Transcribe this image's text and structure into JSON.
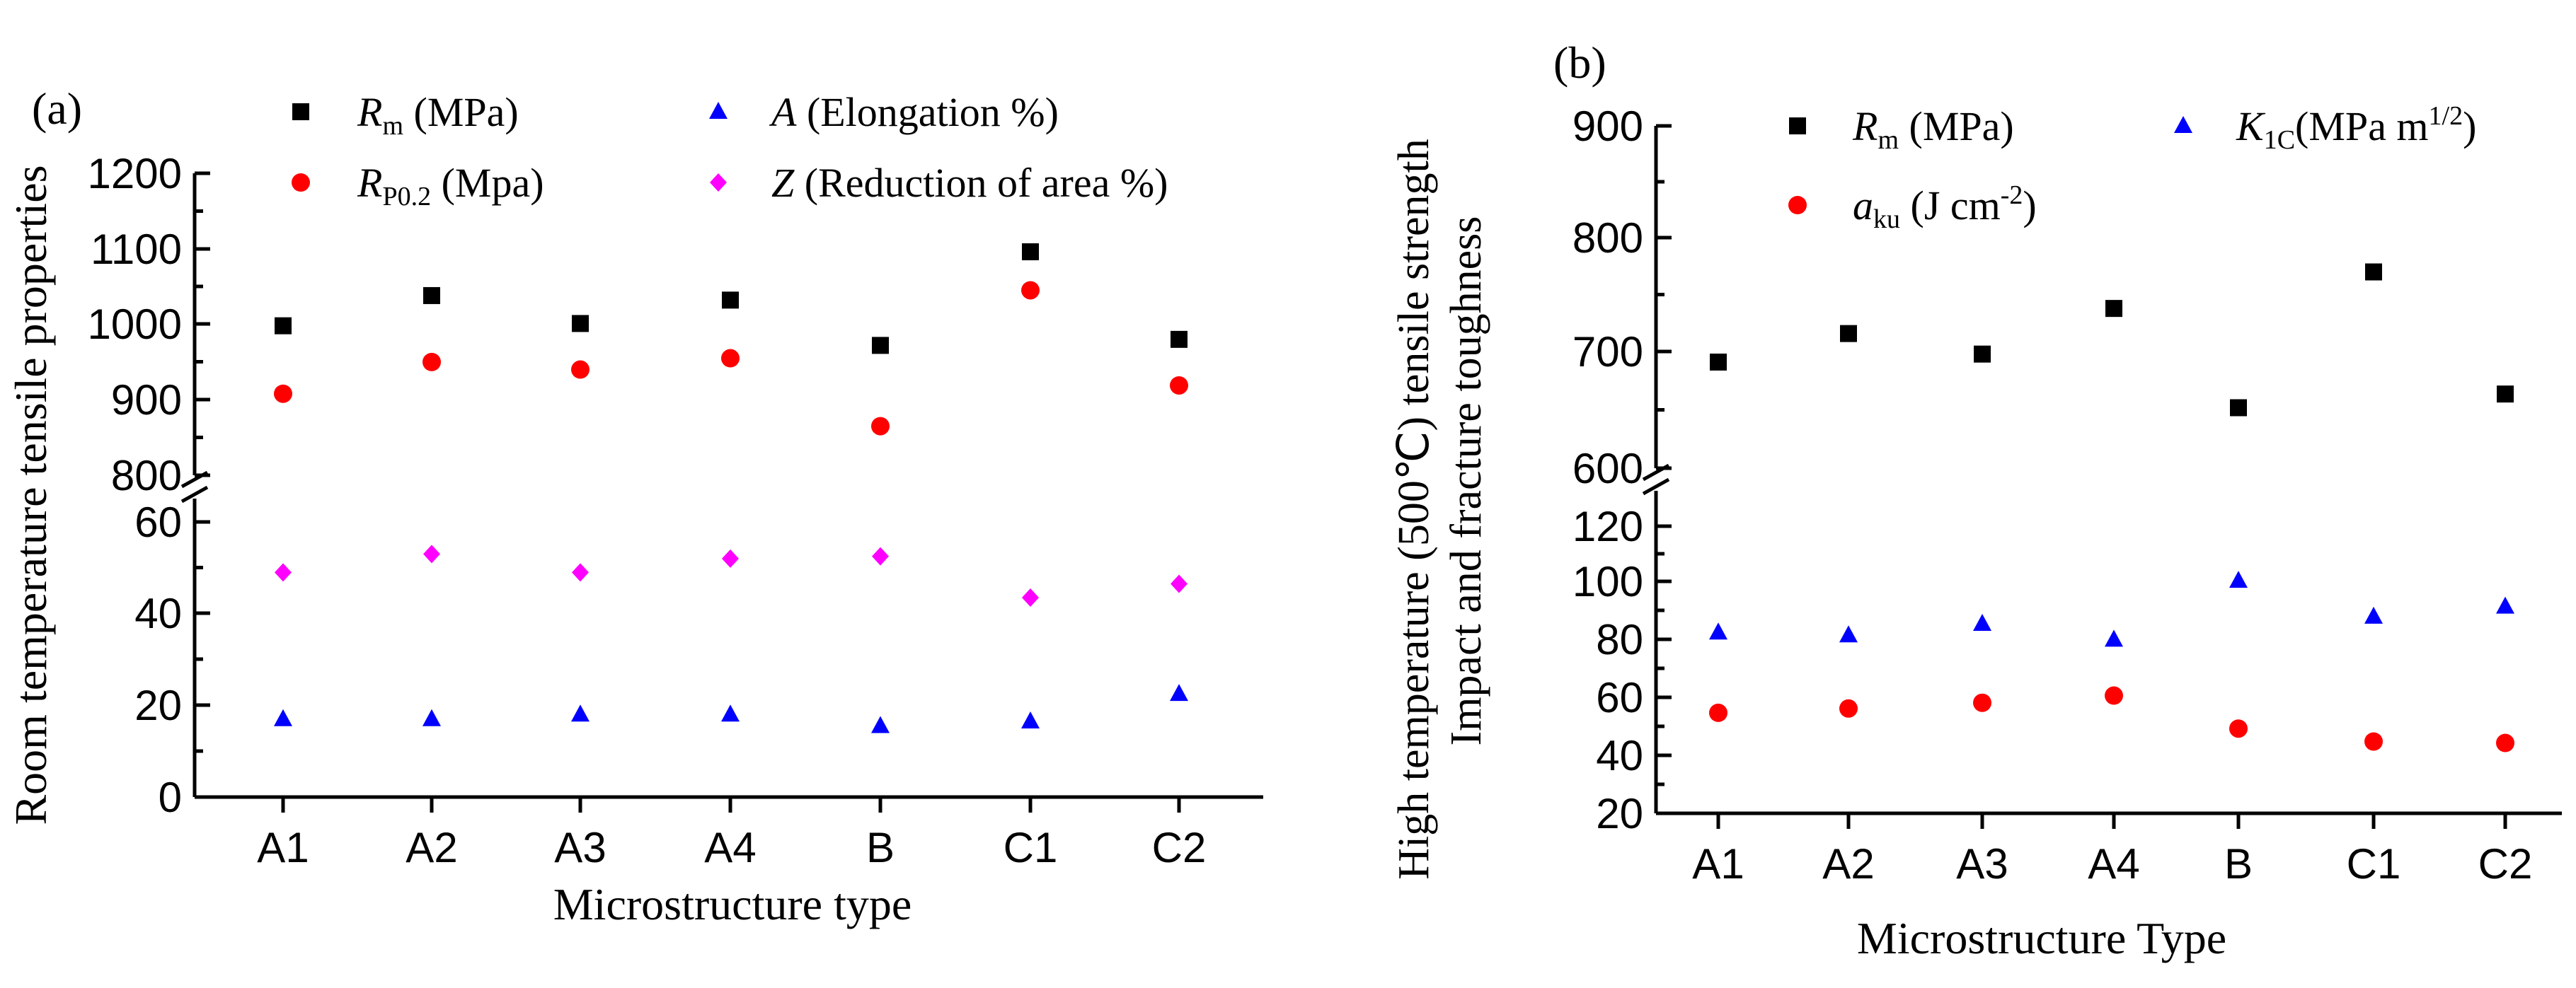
{
  "chart_data": [
    {
      "type": "scatter",
      "panel_label": "(a)",
      "title": "",
      "xlabel": "Microstructure type",
      "ylabel": "Room temperature tensile properties",
      "categories": [
        "A1",
        "A2",
        "A3",
        "A4",
        "B",
        "C1",
        "C2"
      ],
      "broken_axis": true,
      "upper_ylim": [
        800,
        1200
      ],
      "upper_yticks": [
        "800",
        "900",
        "1000",
        "1100",
        "1200"
      ],
      "lower_ylim": [
        0,
        65
      ],
      "lower_yticks": [
        "0",
        "20",
        "40",
        "60"
      ],
      "legend_placement": "top",
      "series": [
        {
          "name": "R_m (MPa)",
          "sym": "R",
          "sub": "m",
          "rest": " (MPa)",
          "marker": "square",
          "color": "#000000",
          "axis": "upper",
          "values": [
            998,
            1038,
            1001,
            1032,
            972,
            1096,
            980
          ]
        },
        {
          "name": "R_P0.2 (Mpa)",
          "sym": "R",
          "sub": "P0.2",
          "rest": " (Mpa)",
          "marker": "circle",
          "color": "#ff0000",
          "axis": "upper",
          "values": [
            908,
            950,
            940,
            955,
            865,
            1045,
            919
          ]
        },
        {
          "name": "A (Elongation %)",
          "sym": "A",
          "sub": "",
          "rest": " (Elongation %)",
          "marker": "triangle",
          "color": "#0000ff",
          "axis": "lower",
          "values": [
            17,
            17,
            18,
            18,
            15.5,
            16.5,
            22.5
          ]
        },
        {
          "name": "Z (Reduction of area %)",
          "sym": "Z",
          "sub": "",
          "rest": " (Reduction of area %)",
          "marker": "diamond",
          "color": "#ff00ff",
          "axis": "lower",
          "values": [
            49,
            53,
            49,
            52,
            52.5,
            43.5,
            46.5
          ]
        }
      ]
    },
    {
      "type": "scatter",
      "panel_label": "(b)",
      "title": "",
      "xlabel": "Microstructure Type",
      "ylabel_line1": "High temperature (500℃) tensile strength",
      "ylabel_line2": "Impact and fracture toughness",
      "categories": [
        "A1",
        "A2",
        "A3",
        "A4",
        "B",
        "C1",
        "C2"
      ],
      "broken_axis": true,
      "upper_ylim": [
        600,
        900
      ],
      "upper_yticks": [
        "600",
        "700",
        "800",
        "900"
      ],
      "lower_ylim": [
        20,
        130
      ],
      "lower_yticks": [
        "20",
        "40",
        "60",
        "80",
        "100",
        "120"
      ],
      "legend_placement": "top",
      "series": [
        {
          "name": "R_m (MPa)",
          "sym": "R",
          "sub": "m",
          "rest": " (MPa)",
          "marker": "square",
          "color": "#000000",
          "axis": "upper",
          "values": [
            693,
            718,
            700,
            740,
            653,
            772,
            665
          ]
        },
        {
          "name": "a_ku (J cm^-2)",
          "sym": "a",
          "sub": "ku",
          "rest": " (J cm",
          "sup": "-2",
          "tail": ")",
          "marker": "circle",
          "color": "#ff0000",
          "axis": "lower",
          "values": [
            55,
            56.5,
            58.5,
            61,
            49.5,
            45,
            44.5
          ]
        },
        {
          "name": "K_1C (MPa m^1/2)",
          "sym": "K",
          "sub": "1C",
          "rest": "(MPa m",
          "sup": "1/2",
          "tail": ")",
          "marker": "triangle",
          "color": "#0000ff",
          "axis": "lower",
          "values": [
            83,
            82,
            86,
            80.5,
            101,
            88.5,
            92
          ]
        }
      ]
    }
  ]
}
